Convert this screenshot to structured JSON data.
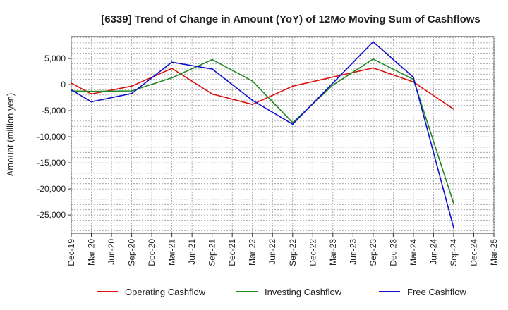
{
  "chart_data": {
    "type": "line",
    "title": "[6339]  Trend of Change in Amount (YoY) of 12Mo Moving Sum of Cashflows",
    "xlabel": "",
    "ylabel": "Amount (million yen)",
    "ylim": [
      -28500,
      9200
    ],
    "grid": true,
    "legend_position": "bottom",
    "categories": [
      "Dec-19",
      "Mar-20",
      "Jun-20",
      "Sep-20",
      "Dec-20",
      "Mar-21",
      "Jun-21",
      "Sep-21",
      "Dec-21",
      "Mar-22",
      "Jun-22",
      "Sep-22",
      "Dec-22",
      "Mar-23",
      "Jun-23",
      "Sep-23",
      "Dec-23",
      "Mar-24",
      "Jun-24",
      "Sep-24",
      "Dec-24",
      "Mar-25"
    ],
    "yticks": [
      5000,
      0,
      -5000,
      -10000,
      -15000,
      -20000,
      -25000
    ],
    "ytick_labels": [
      "5,000",
      "0",
      "-5,000",
      "-10,000",
      "-15,000",
      "-20,000",
      "-25,000"
    ],
    "series": [
      {
        "name": "Operating Cashflow",
        "color": "#dd1111",
        "values": [
          300,
          -1800,
          null,
          -300,
          null,
          3100,
          null,
          -1800,
          null,
          -3800,
          null,
          -300,
          null,
          null,
          null,
          3200,
          null,
          500,
          null,
          -4700,
          null,
          null
        ]
      },
      {
        "name": "Investing Cashflow",
        "color": "#228822",
        "values": [
          -1200,
          -1300,
          null,
          -1200,
          null,
          1300,
          null,
          4800,
          null,
          700,
          null,
          -7300,
          null,
          -100,
          null,
          4900,
          null,
          1000,
          null,
          -22800,
          null,
          null
        ]
      },
      {
        "name": "Free Cashflow",
        "color": "#1111cc",
        "values": [
          -1000,
          -3300,
          null,
          -1700,
          null,
          4300,
          null,
          3000,
          null,
          -3000,
          null,
          -7600,
          null,
          null,
          null,
          8200,
          null,
          1400,
          null,
          -27500,
          null,
          null
        ]
      }
    ]
  }
}
